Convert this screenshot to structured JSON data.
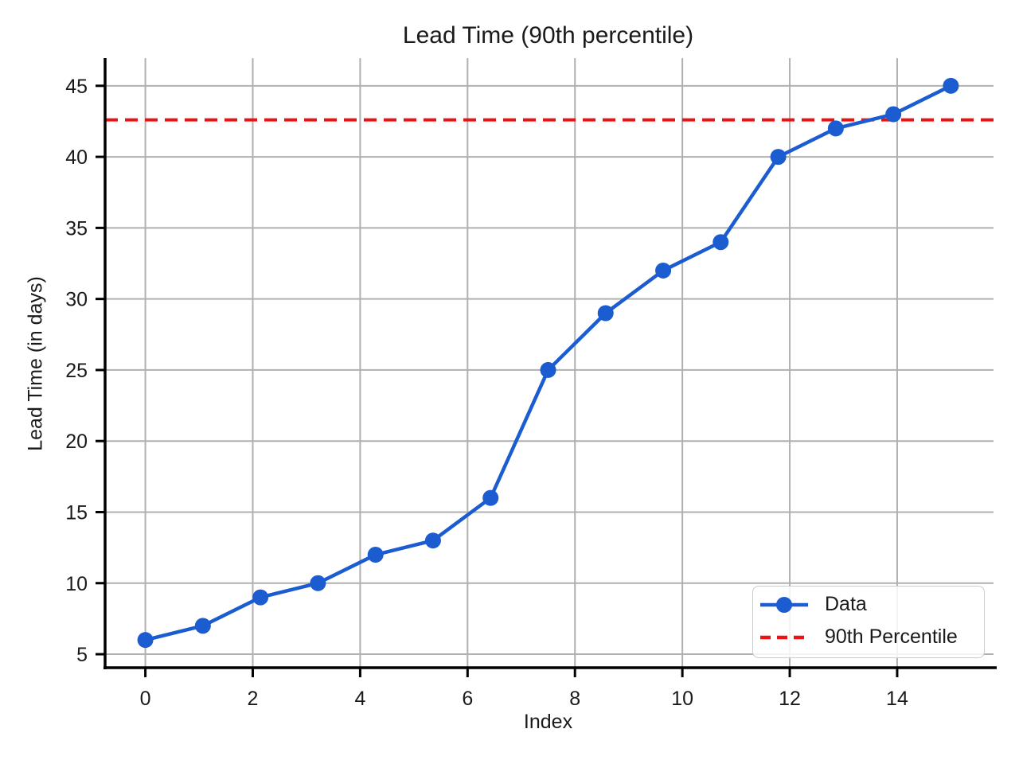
{
  "chart_data": {
    "type": "line",
    "title": "Lead Time (90th percentile)",
    "xlabel": "Index",
    "ylabel": "Lead Time (in days)",
    "x": [
      0,
      1.071,
      2.143,
      3.214,
      4.286,
      5.357,
      6.429,
      7.5,
      8.571,
      9.643,
      10.714,
      11.786,
      12.857,
      13.929,
      15
    ],
    "series": [
      {
        "name": "Data",
        "type": "line",
        "marker": "circle",
        "color": "#1b5cd0",
        "values": [
          6,
          7,
          9,
          10,
          12,
          13,
          16,
          25,
          29,
          32,
          34,
          40,
          42,
          43,
          45
        ]
      },
      {
        "name": "90th Percentile",
        "type": "hline",
        "linestyle": "dashed",
        "color": "#ee1111",
        "value": 42.6
      }
    ],
    "xlim": [
      -0.75,
      15.75
    ],
    "ylim": [
      4.05,
      46.95
    ],
    "xticks": [
      0,
      2,
      4,
      6,
      8,
      10,
      12,
      14
    ],
    "yticks": [
      5,
      10,
      15,
      20,
      25,
      30,
      35,
      40,
      45
    ],
    "grid": true,
    "grid_color": "#b0b0b0",
    "spine_color": "#000000",
    "tick_label_color": "#1a1a1a",
    "legend_position": "lower right"
  }
}
